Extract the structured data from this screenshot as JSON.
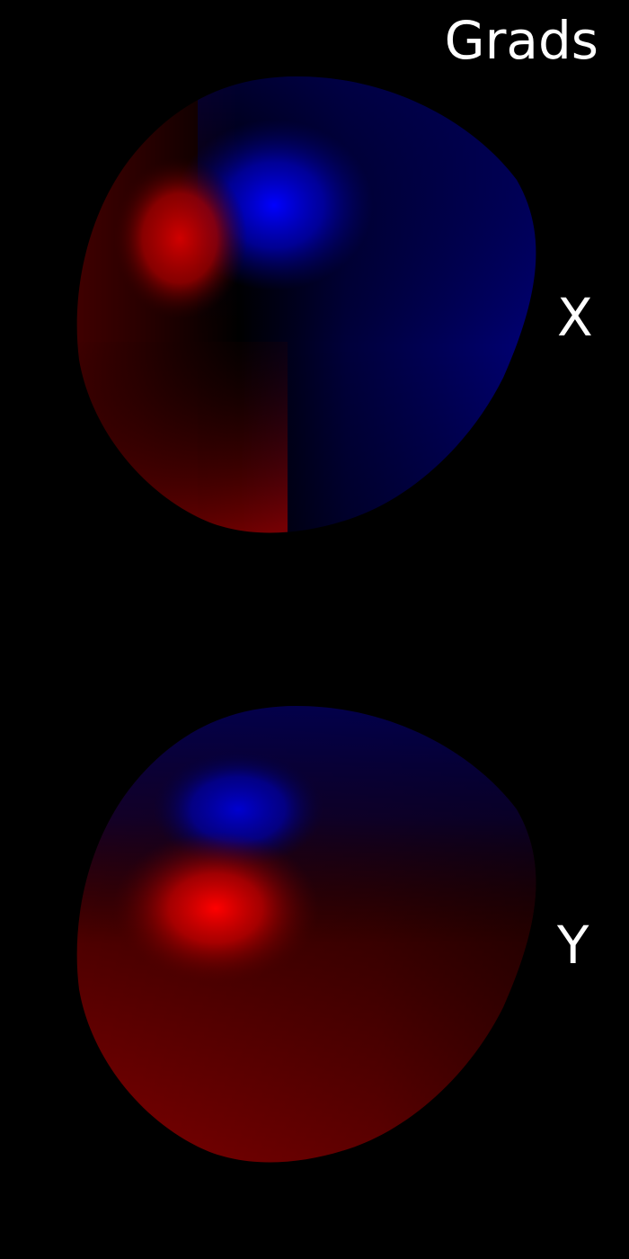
{
  "title": "Grads",
  "panels": [
    {
      "label": "X",
      "colors": {
        "positive": "#ff0000",
        "negative": "#0000ff",
        "neutral": "#000000"
      }
    },
    {
      "label": "Y",
      "colors": {
        "positive": "#ff0000",
        "negative": "#0000ff",
        "neutral": "#000000"
      }
    }
  ]
}
